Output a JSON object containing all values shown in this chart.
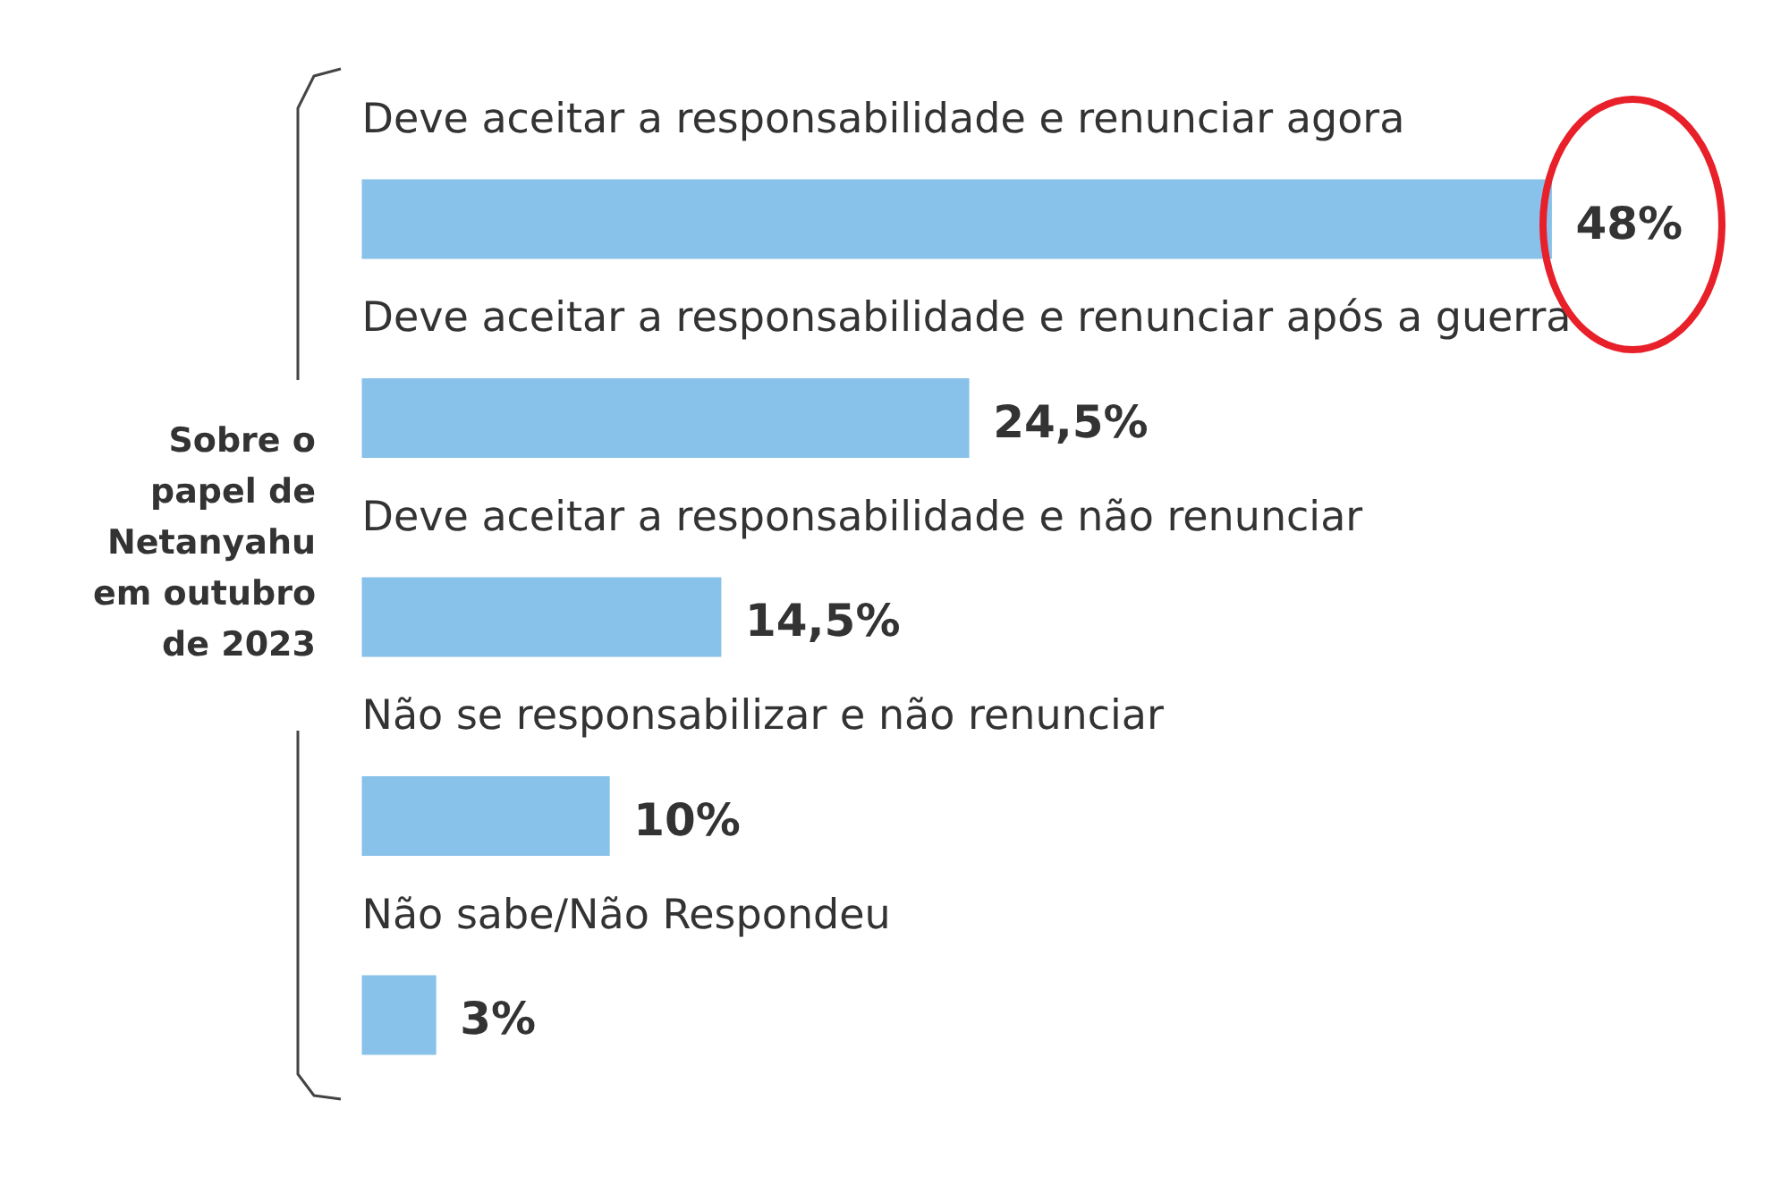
{
  "chart_data": {
    "type": "bar",
    "orientation": "horizontal",
    "ylabel": "Sobre o\npapel de\nNetanyahu\nem outubro\nde 2023",
    "categories": [
      "Deve aceitar a responsabilidade e renunciar agora",
      "Deve aceitar a responsabilidade e renunciar após a guerra",
      "Deve aceitar a responsabilidade e não renunciar",
      "Não se responsabilizar e não renunciar",
      "Não sabe/Não Respondeu"
    ],
    "values": [
      48,
      24.5,
      14.5,
      10,
      3
    ],
    "value_labels": [
      "48%",
      "24,5%",
      "14,5%",
      "10%",
      "3%"
    ],
    "color": "#88c1ea",
    "grid": false
  }
}
